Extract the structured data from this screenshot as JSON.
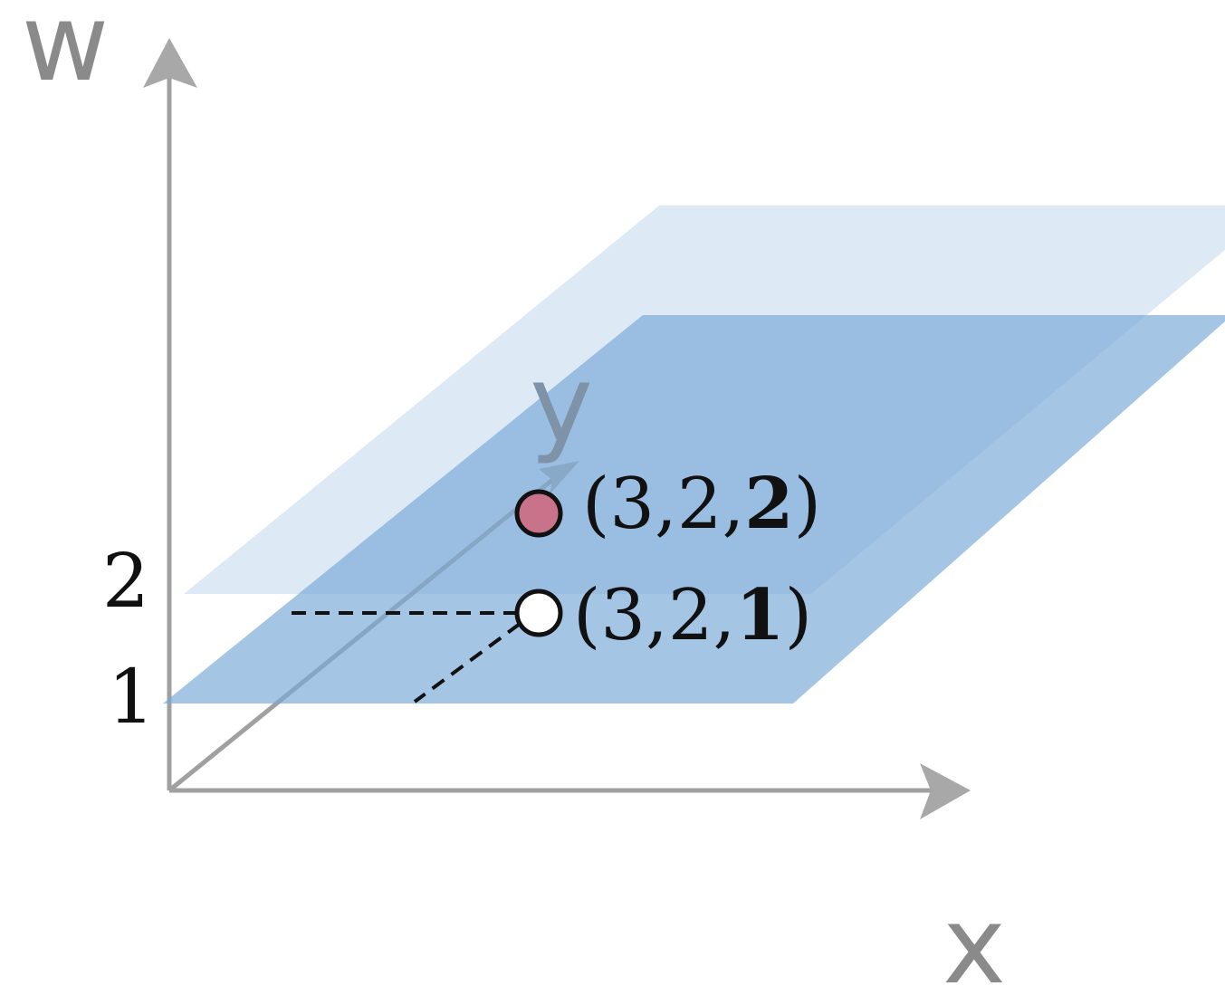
{
  "diagram": {
    "axes": {
      "w_label": "w",
      "x_label": "x",
      "y_label": "y"
    },
    "ticks": {
      "tick_2": "2",
      "tick_1": "1"
    },
    "points": {
      "upper": {
        "prefix": "(3,2,",
        "bold_part": "2",
        "suffix": ")",
        "fill": "#c9738a"
      },
      "lower": {
        "prefix": "(3,2,",
        "bold_part": "1",
        "suffix": ")",
        "fill": "#ffffff"
      }
    },
    "colors": {
      "axis": "#a0a0a0",
      "plane_light": "#dce8f5",
      "plane_dark": "#7aaad8",
      "point_stroke": "#111111"
    }
  }
}
